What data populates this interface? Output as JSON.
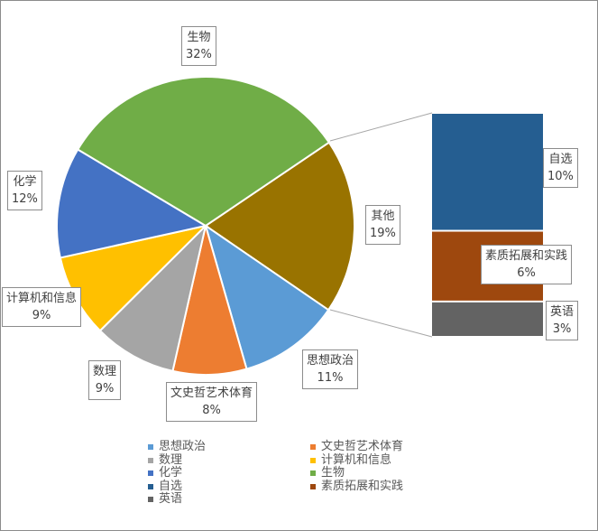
{
  "chart_data": {
    "type": "pie-of-bar",
    "pie": [
      {
        "name": "其他",
        "value": 19,
        "label": "19%",
        "color": "#997300"
      },
      {
        "name": "思想政治",
        "value": 11,
        "label": "11%",
        "color": "#5b9bd5"
      },
      {
        "name": "文史哲艺术体育",
        "value": 8,
        "label": "8%",
        "color": "#ed7d31"
      },
      {
        "name": "数理",
        "value": 9,
        "label": "9%",
        "color": "#a5a5a5"
      },
      {
        "name": "计算机和信息",
        "value": 9,
        "label": "9%",
        "color": "#ffc000"
      },
      {
        "name": "化学",
        "value": 12,
        "label": "12%",
        "color": "#4472c4"
      },
      {
        "name": "生物",
        "value": 32,
        "label": "32%",
        "color": "#70ad47"
      }
    ],
    "bar": [
      {
        "name": "自选",
        "value": 10,
        "label": "10%",
        "color": "#255e91"
      },
      {
        "name": "素质拓展和实践",
        "value": 6,
        "label": "6%",
        "color": "#9e480e"
      },
      {
        "name": "英语",
        "value": 3,
        "label": "3%",
        "color": "#636363"
      }
    ],
    "legend": [
      "思想政治",
      "文史哲艺术体育",
      "数理",
      "计算机和信息",
      "化学",
      "生物",
      "自选",
      "素质拓展和实践",
      "英语"
    ],
    "legend_position": "bottom"
  }
}
